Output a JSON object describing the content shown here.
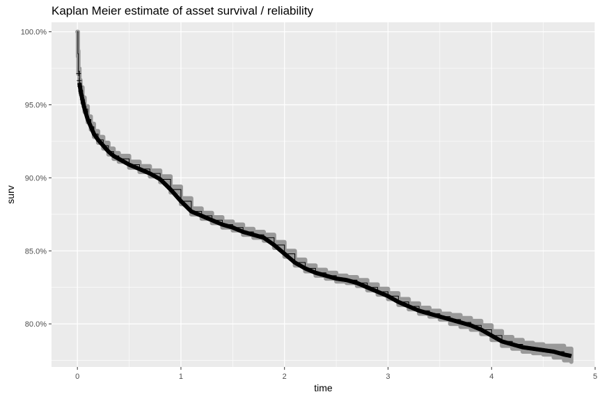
{
  "chart_data": {
    "type": "line",
    "title": "Kaplan Meier estimate of asset survival / reliability",
    "xlabel": "time",
    "ylabel": "surv",
    "xlim": [
      -0.25,
      5.0
    ],
    "ylim": [
      0.7705,
      1.0065
    ],
    "grid": true,
    "x_ticks": [
      0,
      1,
      2,
      3,
      4,
      5
    ],
    "x_tick_labels": [
      "0",
      "1",
      "2",
      "3",
      "4",
      "5"
    ],
    "y_ticks": [
      0.8,
      0.85,
      0.9,
      0.95,
      1.0
    ],
    "y_tick_labels": [
      "80.0%",
      "85.0%",
      "90.0%",
      "95.0%",
      "100.0%"
    ],
    "colors": {
      "panel": "#ebebeb",
      "grid": "#ffffff",
      "line": "#000000",
      "ribbon": "#999999"
    },
    "series": [
      {
        "x": [
          0,
          0.005,
          0.01,
          0.02,
          0.03,
          0.05,
          0.07,
          0.1,
          0.13,
          0.16,
          0.2,
          0.25,
          0.3,
          0.35,
          0.4,
          0.5,
          0.6,
          0.7,
          0.8,
          0.9,
          1.0,
          1.1,
          1.2,
          1.3,
          1.4,
          1.5,
          1.6,
          1.7,
          1.8,
          1.9,
          2.0,
          2.1,
          2.2,
          2.3,
          2.4,
          2.5,
          2.6,
          2.7,
          2.8,
          2.9,
          3.0,
          3.1,
          3.2,
          3.3,
          3.4,
          3.5,
          3.6,
          3.7,
          3.8,
          3.9,
          4.0,
          4.1,
          4.2,
          4.3,
          4.4,
          4.5,
          4.6,
          4.7,
          4.77
        ],
        "surv": [
          1.0,
          0.985,
          0.973,
          0.965,
          0.96,
          0.953,
          0.947,
          0.94,
          0.935,
          0.93,
          0.926,
          0.922,
          0.918,
          0.915,
          0.913,
          0.909,
          0.906,
          0.903,
          0.899,
          0.892,
          0.884,
          0.877,
          0.874,
          0.871,
          0.868,
          0.866,
          0.863,
          0.861,
          0.859,
          0.854,
          0.848,
          0.842,
          0.838,
          0.835,
          0.833,
          0.831,
          0.83,
          0.828,
          0.825,
          0.822,
          0.819,
          0.815,
          0.812,
          0.809,
          0.807,
          0.805,
          0.803,
          0.801,
          0.799,
          0.796,
          0.792,
          0.788,
          0.786,
          0.784,
          0.783,
          0.782,
          0.781,
          0.779,
          0.778
        ],
        "lower": [
          1.0,
          0.983,
          0.971,
          0.963,
          0.958,
          0.951,
          0.945,
          0.938,
          0.933,
          0.928,
          0.924,
          0.92,
          0.916,
          0.913,
          0.911,
          0.907,
          0.904,
          0.901,
          0.897,
          0.89,
          0.882,
          0.875,
          0.872,
          0.869,
          0.866,
          0.864,
          0.861,
          0.859,
          0.857,
          0.852,
          0.846,
          0.84,
          0.836,
          0.833,
          0.831,
          0.829,
          0.828,
          0.826,
          0.823,
          0.82,
          0.817,
          0.813,
          0.81,
          0.807,
          0.805,
          0.803,
          0.8,
          0.798,
          0.796,
          0.793,
          0.789,
          0.785,
          0.783,
          0.781,
          0.78,
          0.779,
          0.777,
          0.775,
          0.774
        ],
        "upper": [
          1.0,
          0.987,
          0.975,
          0.967,
          0.962,
          0.955,
          0.949,
          0.942,
          0.937,
          0.932,
          0.928,
          0.924,
          0.92,
          0.917,
          0.915,
          0.911,
          0.908,
          0.905,
          0.901,
          0.894,
          0.886,
          0.879,
          0.876,
          0.873,
          0.87,
          0.868,
          0.865,
          0.863,
          0.861,
          0.856,
          0.85,
          0.844,
          0.84,
          0.837,
          0.835,
          0.833,
          0.832,
          0.83,
          0.827,
          0.824,
          0.821,
          0.817,
          0.814,
          0.811,
          0.809,
          0.807,
          0.806,
          0.804,
          0.802,
          0.799,
          0.795,
          0.791,
          0.789,
          0.787,
          0.786,
          0.785,
          0.785,
          0.783,
          0.782
        ]
      }
    ]
  }
}
